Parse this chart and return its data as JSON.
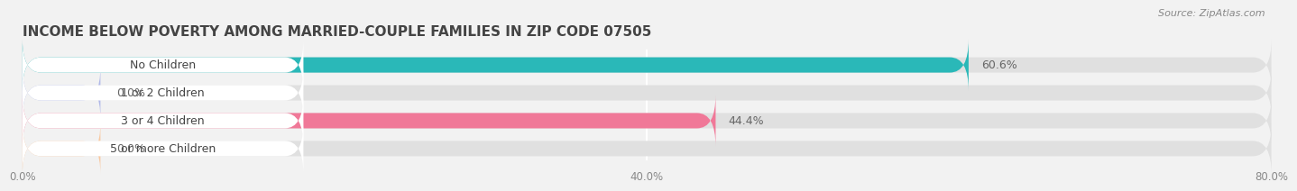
{
  "title": "INCOME BELOW POVERTY AMONG MARRIED-COUPLE FAMILIES IN ZIP CODE 07505",
  "source": "Source: ZipAtlas.com",
  "categories": [
    "No Children",
    "1 or 2 Children",
    "3 or 4 Children",
    "5 or more Children"
  ],
  "values": [
    60.6,
    0.0,
    44.4,
    0.0
  ],
  "bar_colors": [
    "#2ab8b8",
    "#b0b8e8",
    "#f07898",
    "#f8c8a0"
  ],
  "xlim_max": 80,
  "xticks": [
    0.0,
    40.0,
    80.0
  ],
  "xtick_labels": [
    "0.0%",
    "40.0%",
    "80.0%"
  ],
  "background_color": "#f2f2f2",
  "bar_bg_color": "#e0e0e0",
  "label_bg_color": "#ffffff",
  "title_fontsize": 11,
  "label_fontsize": 9,
  "value_fontsize": 9,
  "source_fontsize": 8
}
